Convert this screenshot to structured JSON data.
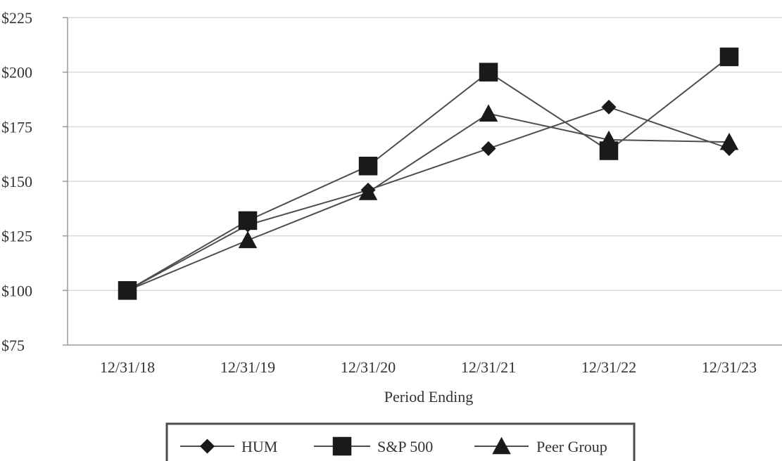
{
  "chart_data": {
    "type": "line",
    "title": "",
    "xlabel": "Period Ending",
    "ylabel": "",
    "categories": [
      "12/31/18",
      "12/31/19",
      "12/31/20",
      "12/31/21",
      "12/31/22",
      "12/31/23"
    ],
    "ylim": [
      75,
      225
    ],
    "yticks": [
      75,
      100,
      125,
      150,
      175,
      200,
      225
    ],
    "ytick_labels": [
      "$75",
      "$100",
      "$125",
      "$150",
      "$175",
      "$200",
      "$225"
    ],
    "grid": "horizontal",
    "legend_position": "bottom",
    "series": [
      {
        "name": "HUM",
        "marker": "diamond",
        "values": [
          100,
          130,
          146,
          165,
          184,
          165
        ]
      },
      {
        "name": "S&P 500",
        "marker": "square",
        "values": [
          100,
          132,
          157,
          200,
          164,
          207
        ]
      },
      {
        "name": "Peer Group",
        "marker": "triangle",
        "values": [
          100,
          123,
          145,
          181,
          169,
          168
        ]
      }
    ],
    "colors": {
      "line": "#4d4d4d",
      "marker": "#1a1a1a",
      "grid": "#d9d9d9",
      "axis": "#9a9a9a",
      "legend_border": "#4d4d4d"
    }
  }
}
